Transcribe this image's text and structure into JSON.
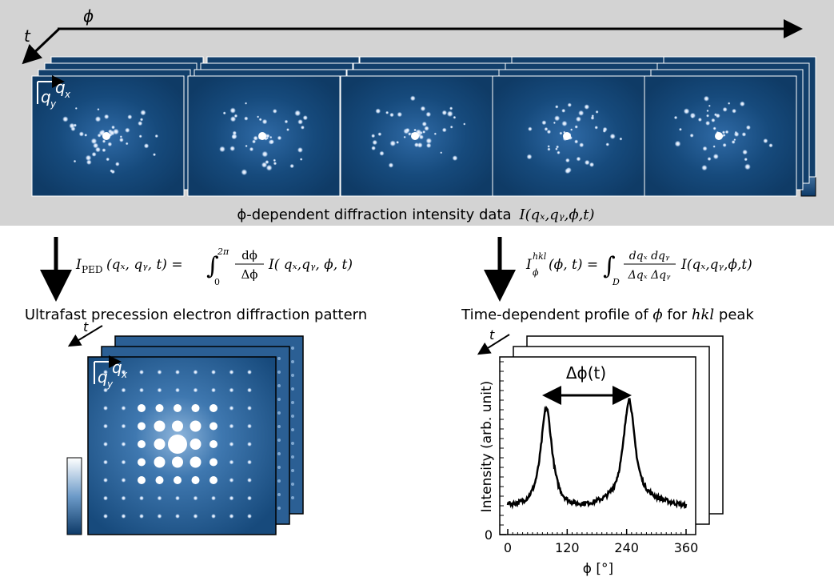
{
  "top_panel": {
    "axis_phi": "ϕ",
    "axis_t": "t",
    "q": "q",
    "x": "x",
    "y": "y",
    "caption": "ϕ-dependent diffraction intensity data",
    "caption_formula": "I(qₓ,qᵧ,ϕ,t)"
  },
  "left_equation": {
    "lhs": "I",
    "lhs_sub": "PED",
    "lhs_args": "(qₓ, qᵧ, t) =",
    "integral": "∫",
    "lower": "0",
    "upper": "2π",
    "numerator": "dϕ",
    "denominator": "Δϕ",
    "rhs": "I( qₓ,qᵧ, ϕ, t)"
  },
  "right_equation": {
    "lhs": "I",
    "lhs_sup": "hkl",
    "lhs_sub": "ϕ",
    "lhs_args": "(ϕ, t) =",
    "integral": "∫",
    "lower": "D",
    "numerator": "dqₓ dqᵧ",
    "denominator": "Δqₓ Δqᵧ",
    "rhs": "I(qₓ,qᵧ,ϕ,t)"
  },
  "ped_panel": {
    "title": "Ultrafast precession electron diffraction pattern",
    "axis_t": "t"
  },
  "profile_panel": {
    "title_parts": [
      "Time-dependent profile of ",
      "ϕ",
      " for ",
      "hkl",
      " peak"
    ],
    "axis_t": "t",
    "delta": "Δϕ(t)",
    "ylabel": "Intensity (arb. unit)",
    "xlabel": "ϕ [°]",
    "xlim": [
      0,
      360
    ],
    "xticks": [
      0,
      120,
      240,
      360
    ],
    "yticks": [
      0
    ]
  }
}
